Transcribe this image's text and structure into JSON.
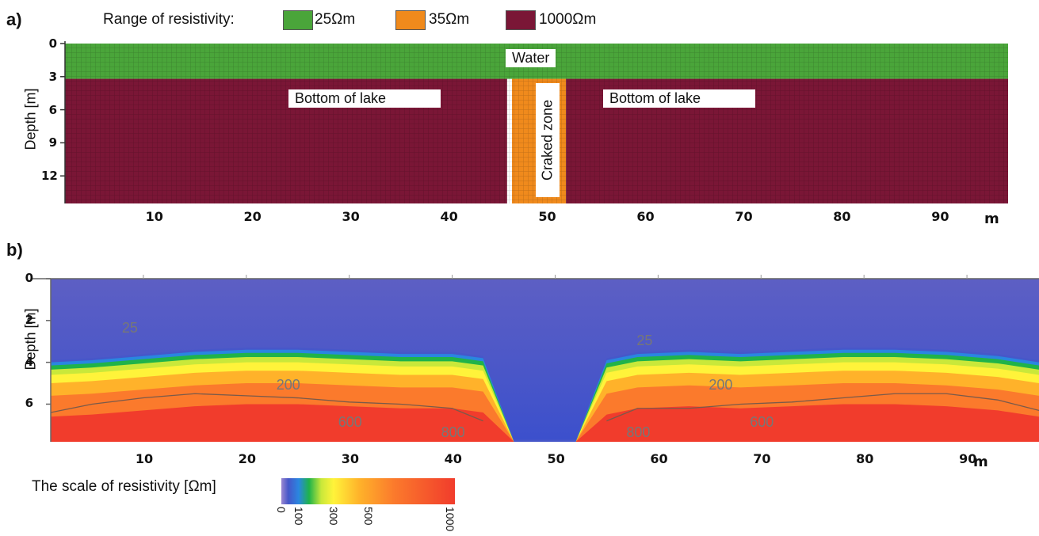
{
  "chart_data": [
    {
      "type": "heatmap",
      "panel_label": "a)",
      "legend_title": "Range of resistivity:",
      "legend": [
        {
          "label": "25Ωm",
          "value": 25,
          "color": "#4aa53a"
        },
        {
          "label": "35Ωm",
          "value": 35,
          "color": "#f08a1c"
        },
        {
          "label": "1000Ωm",
          "value": 1000,
          "color": "#7a1636"
        }
      ],
      "ylabel": "Depth [m]",
      "x_unit": "m",
      "xticks": [
        "10",
        "20",
        "30",
        "40",
        "50",
        "60",
        "70",
        "80",
        "90"
      ],
      "yticks": [
        "0",
        "3",
        "6",
        "9",
        "12"
      ],
      "xlim": [
        1,
        97
      ],
      "ylim": [
        0,
        14.5
      ],
      "zones": [
        {
          "label": "Water",
          "resistivity": 25,
          "depth_from": 0,
          "depth_to": 3.2
        },
        {
          "label": "Bottom of lake",
          "resistivity": 1000,
          "x_from": 1,
          "x_to": 46,
          "depth_from": 3.2,
          "depth_to": 14.5
        },
        {
          "label": "Craked zone",
          "resistivity": 35,
          "x_from": 46.5,
          "x_to": 52,
          "depth_from": 3.2,
          "depth_to": 14.5
        },
        {
          "label": "Bottom of lake",
          "resistivity": 1000,
          "x_from": 52,
          "x_to": 97,
          "depth_from": 3.2,
          "depth_to": 14.5
        }
      ],
      "annotations": [
        "Water",
        "Bottom of lake",
        "Craked zone",
        "Bottom of lake"
      ],
      "colors": {
        "water": "#4aa53a",
        "crack": "#f08a1c",
        "bottom": "#7a1636"
      }
    },
    {
      "type": "heatmap",
      "panel_label": "b)",
      "ylabel": "Depth [m]",
      "x_unit": "m",
      "xticks": [
        "10",
        "20",
        "30",
        "40",
        "50",
        "60",
        "70",
        "80",
        "90"
      ],
      "yticks": [
        "0",
        "2",
        "4",
        "6"
      ],
      "xlim": [
        1,
        97
      ],
      "ylim": [
        0,
        7.8
      ],
      "contour_labels": [
        {
          "text": "25",
          "x": 9,
          "depth": 2.4
        },
        {
          "text": "25",
          "x": 59,
          "depth": 3.0
        },
        {
          "text": "200",
          "x": 24,
          "depth": 5.1
        },
        {
          "text": "200",
          "x": 66,
          "depth": 5.1
        },
        {
          "text": "600",
          "x": 30,
          "depth": 6.9
        },
        {
          "text": "600",
          "x": 70,
          "depth": 6.9
        },
        {
          "text": "800",
          "x": 40,
          "depth": 7.4
        },
        {
          "text": "800",
          "x": 58,
          "depth": 7.4
        }
      ],
      "boundary_depths": {
        "x": [
          1,
          5,
          10,
          15,
          20,
          25,
          30,
          35,
          40,
          43,
          46,
          49,
          52,
          55,
          58,
          63,
          68,
          73,
          78,
          83,
          88,
          93,
          97
        ],
        "blue_bottom": [
          4.0,
          3.9,
          3.7,
          3.5,
          3.4,
          3.4,
          3.5,
          3.6,
          3.6,
          3.8,
          7.8,
          7.8,
          7.8,
          3.9,
          3.6,
          3.5,
          3.6,
          3.5,
          3.4,
          3.4,
          3.5,
          3.7,
          4.0
        ],
        "contour_600": [
          6.4,
          6.0,
          5.7,
          5.5,
          5.6,
          5.7,
          5.9,
          6.0,
          6.2,
          6.8,
          7.8,
          7.8,
          7.8,
          6.8,
          6.2,
          6.2,
          6.0,
          5.9,
          5.7,
          5.5,
          5.5,
          5.8,
          6.3
        ]
      },
      "colorbar": {
        "title": "The scale of resistivity [Ωm]",
        "ticks": [
          "0",
          "100",
          "300",
          "500",
          "1000"
        ],
        "tick_values": [
          0,
          100,
          300,
          500,
          1000
        ],
        "range": [
          0,
          1000
        ],
        "stops": [
          {
            "value": 0,
            "color": "#9a86d0"
          },
          {
            "value": 40,
            "color": "#4657c9"
          },
          {
            "value": 100,
            "color": "#2a86e0"
          },
          {
            "value": 160,
            "color": "#1fb34a"
          },
          {
            "value": 230,
            "color": "#c9e83a"
          },
          {
            "value": 300,
            "color": "#fff33a"
          },
          {
            "value": 450,
            "color": "#ffb22a"
          },
          {
            "value": 650,
            "color": "#fb7a2c"
          },
          {
            "value": 1000,
            "color": "#f13c2c"
          }
        ]
      }
    }
  ]
}
